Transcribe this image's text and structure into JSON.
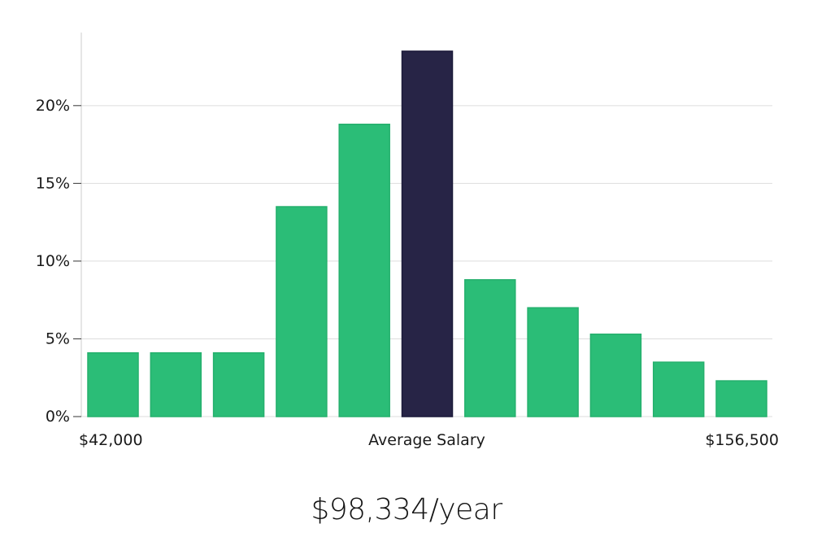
{
  "chart_data": {
    "type": "bar",
    "categories": [
      "",
      "",
      "",
      "",
      "",
      "",
      "",
      "",
      "",
      "",
      ""
    ],
    "values": [
      4.1,
      4.1,
      4.1,
      13.5,
      18.8,
      23.5,
      8.8,
      7.0,
      5.3,
      3.5,
      2.3
    ],
    "highlight_index": 5,
    "ylim": [
      0,
      24.7
    ],
    "yticks": [
      0,
      5,
      10,
      15,
      20
    ],
    "ytick_labels": [
      "0%",
      "5%",
      "10%",
      "15%",
      "20%"
    ],
    "x_labels": {
      "left": "$42,000",
      "center": "Average Salary",
      "right": "$156,500"
    },
    "grid": true,
    "colors": {
      "bar": "#2bbd77",
      "highlight": "#272446",
      "grid": "#dddddd",
      "axis": "#cccccc"
    }
  },
  "summary": {
    "value": "$98,334/year"
  }
}
